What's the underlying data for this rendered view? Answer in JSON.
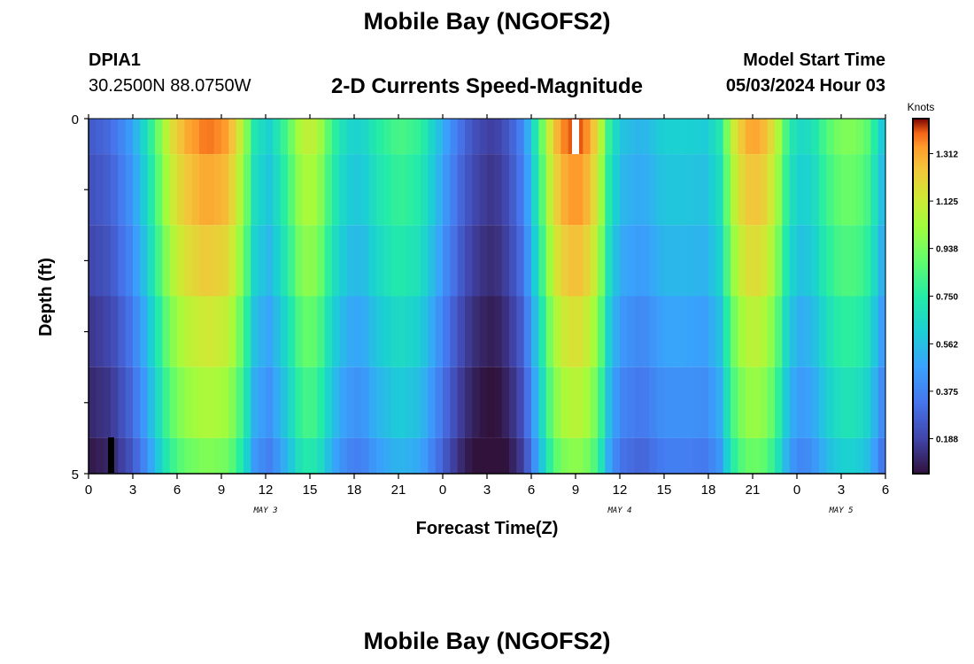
{
  "header": {
    "title": "Mobile Bay (NGOFS2)",
    "station_id": "DPIA1",
    "coordinates": "30.2500N  88.0750W",
    "chart_subtitle": "2-D Currents Speed-Magnitude",
    "model_label": "Model Start Time",
    "model_time": "05/03/2024 Hour 03"
  },
  "footer": {
    "title_repeat": "Mobile Bay (NGOFS2)"
  },
  "chart_data": {
    "type": "heatmap",
    "title": "2-D Currents Speed-Magnitude",
    "xlabel": "Forecast Time(Z)",
    "ylabel": "Depth (ft)",
    "x_range_hours": [
      0,
      54
    ],
    "y_range_ft": [
      0,
      5
    ],
    "x_tick_labels": [
      "0",
      "3",
      "6",
      "9",
      "12",
      "15",
      "18",
      "21",
      "0",
      "3",
      "6",
      "9",
      "12",
      "15",
      "18",
      "21",
      "0",
      "3",
      "6"
    ],
    "y_tick_labels": [
      "0",
      "5"
    ],
    "date_labels": [
      {
        "label": "MAY 3",
        "hour": 12
      },
      {
        "label": "MAY 4",
        "hour": 36
      },
      {
        "label": "MAY 5",
        "hour": 51
      }
    ],
    "colorbar": {
      "title": "Knots",
      "min": 0.05,
      "max": 1.45,
      "ticks": [
        "0.188",
        "0.375",
        "0.562",
        "0.750",
        "0.938",
        "1.125",
        "1.312"
      ],
      "tick_values": [
        0.188,
        0.375,
        0.562,
        0.75,
        0.938,
        1.125,
        1.312
      ]
    },
    "depth_layers_ft": [
      0.25,
      1.25,
      2.25,
      3.25,
      4.25,
      4.75
    ],
    "surface_speed_keypoints": [
      [
        0,
        0.25
      ],
      [
        1.5,
        0.3
      ],
      [
        2.8,
        0.45
      ],
      [
        3.6,
        0.6
      ],
      [
        4.5,
        0.85
      ],
      [
        5.5,
        1.15
      ],
      [
        6.5,
        1.3
      ],
      [
        8,
        1.38
      ],
      [
        9.5,
        1.33
      ],
      [
        10.5,
        1.05
      ],
      [
        11.3,
        0.7
      ],
      [
        12.3,
        0.62
      ],
      [
        13.5,
        0.85
      ],
      [
        14.5,
        1.1
      ],
      [
        15.5,
        1.08
      ],
      [
        16.5,
        0.8
      ],
      [
        17.5,
        0.65
      ],
      [
        18.5,
        0.62
      ],
      [
        19.5,
        0.74
      ],
      [
        21,
        0.84
      ],
      [
        22.5,
        0.78
      ],
      [
        23.5,
        0.6
      ],
      [
        24.5,
        0.42
      ],
      [
        25.5,
        0.28
      ],
      [
        26.5,
        0.2
      ],
      [
        27.5,
        0.17
      ],
      [
        28.5,
        0.25
      ],
      [
        29.5,
        0.4
      ],
      [
        30.5,
        0.8
      ],
      [
        31.5,
        1.25
      ],
      [
        32.5,
        1.4
      ],
      [
        33.5,
        1.4
      ],
      [
        34.5,
        1.2
      ],
      [
        35.2,
        0.8
      ],
      [
        36,
        0.58
      ],
      [
        37.5,
        0.52
      ],
      [
        39,
        0.62
      ],
      [
        40.5,
        0.62
      ],
      [
        41.8,
        0.6
      ],
      [
        42.8,
        0.72
      ],
      [
        43.6,
        1.1
      ],
      [
        44.5,
        1.3
      ],
      [
        45.5,
        1.32
      ],
      [
        46.5,
        1.15
      ],
      [
        47.2,
        0.85
      ],
      [
        48,
        0.65
      ],
      [
        49,
        0.68
      ],
      [
        50,
        0.85
      ],
      [
        51,
        0.95
      ],
      [
        52,
        0.95
      ],
      [
        53,
        0.85
      ],
      [
        53.5,
        0.65
      ],
      [
        54,
        0.55
      ]
    ],
    "layer_factors": [
      1.0,
      0.97,
      0.93,
      0.88,
      0.84,
      0.79
    ],
    "layer_offsets": [
      0.0,
      -0.02,
      -0.04,
      -0.07,
      -0.1,
      -0.13
    ],
    "marker_white_hour": 33,
    "marker_black_hour": 1.5
  }
}
